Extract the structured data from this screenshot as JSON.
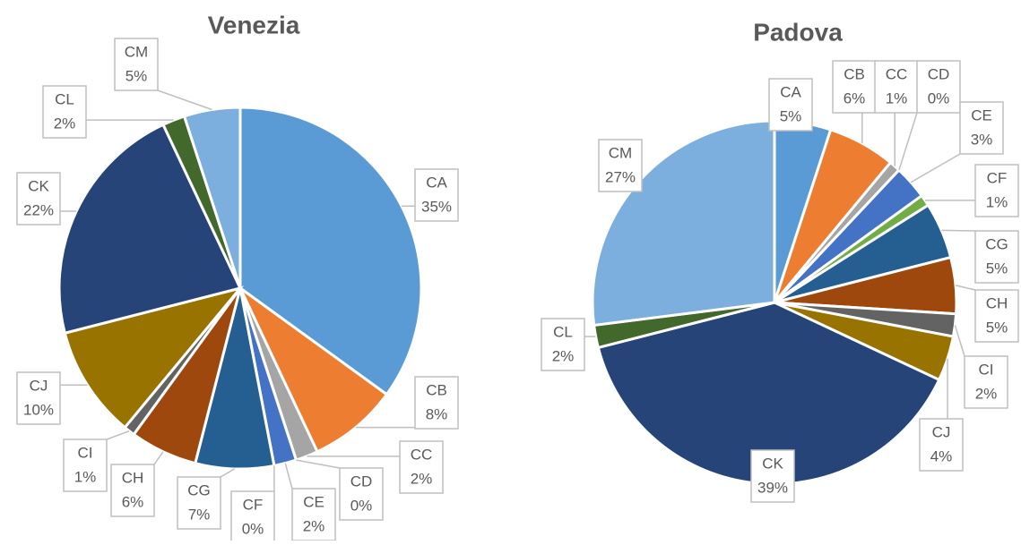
{
  "chart_data": [
    {
      "type": "pie",
      "title": "Venezia",
      "categories": [
        "CA",
        "CB",
        "CC",
        "CD",
        "CE",
        "CF",
        "CG",
        "CH",
        "CI",
        "CJ",
        "CK",
        "CL",
        "CM"
      ],
      "values": [
        35,
        8,
        2,
        0,
        2,
        0,
        7,
        6,
        1,
        10,
        22,
        2,
        5
      ],
      "value_labels": [
        "35%",
        "8%",
        "2%",
        "0%",
        "2%",
        "0%",
        "7%",
        "6%",
        "1%",
        "10%",
        "22%",
        "2%",
        "5%"
      ],
      "colors": [
        "#5b9bd5",
        "#ed7d31",
        "#a5a5a5",
        "#ffc000",
        "#4472c4",
        "#70ad47",
        "#255e91",
        "#9e480e",
        "#636363",
        "#997300",
        "#264478",
        "#43682b",
        "#7cafdd"
      ]
    },
    {
      "type": "pie",
      "title": "Padova",
      "categories": [
        "CA",
        "CB",
        "CC",
        "CD",
        "CE",
        "CF",
        "CG",
        "CH",
        "CI",
        "CJ",
        "CK",
        "CL",
        "CM"
      ],
      "values": [
        5,
        6,
        1,
        0,
        3,
        1,
        5,
        5,
        2,
        4,
        39,
        2,
        27
      ],
      "value_labels": [
        "5%",
        "6%",
        "1%",
        "0%",
        "3%",
        "1%",
        "5%",
        "5%",
        "2%",
        "4%",
        "39%",
        "2%",
        "27%"
      ],
      "colors": [
        "#5b9bd5",
        "#ed7d31",
        "#a5a5a5",
        "#ffc000",
        "#4472c4",
        "#70ad47",
        "#255e91",
        "#9e480e",
        "#636363",
        "#997300",
        "#264478",
        "#43682b",
        "#7cafdd"
      ]
    }
  ]
}
